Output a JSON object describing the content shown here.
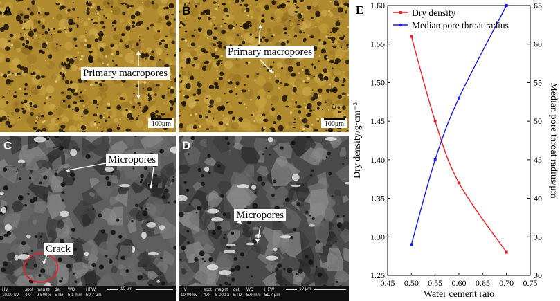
{
  "panels": {
    "A": {
      "letter": "A",
      "label": "Primary macropores",
      "scale": "100μm"
    },
    "B": {
      "letter": "B",
      "label": "Primary macropores",
      "scale": "100μm"
    },
    "C": {
      "letter": "C",
      "labels": [
        "Micropores",
        "Crack"
      ],
      "sem": {
        "hv_h": "HV",
        "hv_v": "10.00 kV",
        "spot_h": "spot",
        "spot_v": "4.0",
        "mag_h": "mag ⊞",
        "mag_v": "2 500 x",
        "det_h": "det",
        "det_v": "ETD",
        "wd_h": "WD",
        "wd_v": "5.1 mm",
        "hfw_h": "HFW",
        "hfw_v": "59.7 μm",
        "scale": "10 μm"
      }
    },
    "D": {
      "letter": "D",
      "labels": [
        "Micropores"
      ],
      "sem": {
        "hv_h": "HV",
        "hv_v": "10.00 kV",
        "spot_h": "spot",
        "spot_v": "4.0",
        "mag_h": "mag ⊡",
        "mag_v": "5 000 x",
        "det_h": "det",
        "det_v": "ETD",
        "wd_h": "WD",
        "wd_v": "5.0 mm",
        "hfw_h": "HFW",
        "hfw_v": "59.7 μm",
        "scale": "10 μm"
      }
    },
    "E": {
      "letter": "E"
    }
  },
  "chart_data": {
    "type": "line",
    "xlabel": "Water cement raio",
    "ylabel_left": "Dry density/g·cm⁻³",
    "ylabel_right": "Median pore throat radius/μm",
    "xlim": [
      0.45,
      0.75
    ],
    "xticks": [
      "0.45",
      "0.50",
      "0.55",
      "0.60",
      "0.65",
      "0.70",
      "0.75"
    ],
    "ylim_left": [
      1.25,
      1.6
    ],
    "yticks_left": [
      "1.25",
      "1.30",
      "1.35",
      "1.40",
      "1.45",
      "1.50",
      "1.55",
      "1.60"
    ],
    "ylim_right": [
      30,
      65
    ],
    "yticks_right": [
      "30",
      "35",
      "40",
      "45",
      "50",
      "55",
      "60",
      "65"
    ],
    "legend_position": "top-left",
    "x": [
      0.5,
      0.55,
      0.6,
      0.7
    ],
    "series": [
      {
        "name": "Dry density",
        "axis": "left",
        "color": "#ee1c25",
        "values": [
          1.56,
          1.45,
          1.37,
          1.28
        ]
      },
      {
        "name": "Median pore throat radius",
        "axis": "right",
        "color": "#1a1aee",
        "values": [
          34,
          45,
          53,
          65
        ]
      }
    ]
  }
}
